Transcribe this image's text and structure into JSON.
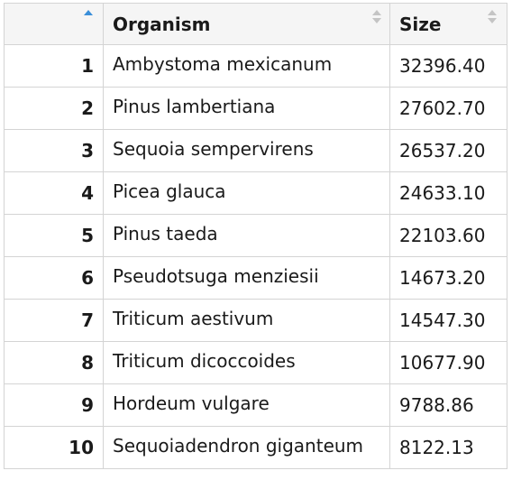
{
  "table": {
    "headers": {
      "index": "",
      "organism": "Organism",
      "size": "Size"
    },
    "sort": {
      "column": "index",
      "direction": "ascending"
    },
    "rows": [
      {
        "index": "1",
        "organism": "Ambystoma mexicanum",
        "size": "32396.40"
      },
      {
        "index": "2",
        "organism": "Pinus lambertiana",
        "size": "27602.70"
      },
      {
        "index": "3",
        "organism": "Sequoia sempervirens",
        "size": "26537.20"
      },
      {
        "index": "4",
        "organism": "Picea glauca",
        "size": "24633.10"
      },
      {
        "index": "5",
        "organism": "Pinus taeda",
        "size": "22103.60"
      },
      {
        "index": "6",
        "organism": "Pseudotsuga menziesii",
        "size": "14673.20"
      },
      {
        "index": "7",
        "organism": "Triticum aestivum",
        "size": "14547.30"
      },
      {
        "index": "8",
        "organism": "Triticum dicoccoides",
        "size": "10677.90"
      },
      {
        "index": "9",
        "organism": "Hordeum vulgare",
        "size": "9788.86"
      },
      {
        "index": "10",
        "organism": "Sequoiadendron giganteum",
        "size": "8122.13"
      }
    ]
  },
  "colors": {
    "sort_active": "#3a8fd9",
    "sort_inactive": "#c4c4c4",
    "header_bg": "#f5f5f5",
    "border": "#d4d4d4"
  }
}
